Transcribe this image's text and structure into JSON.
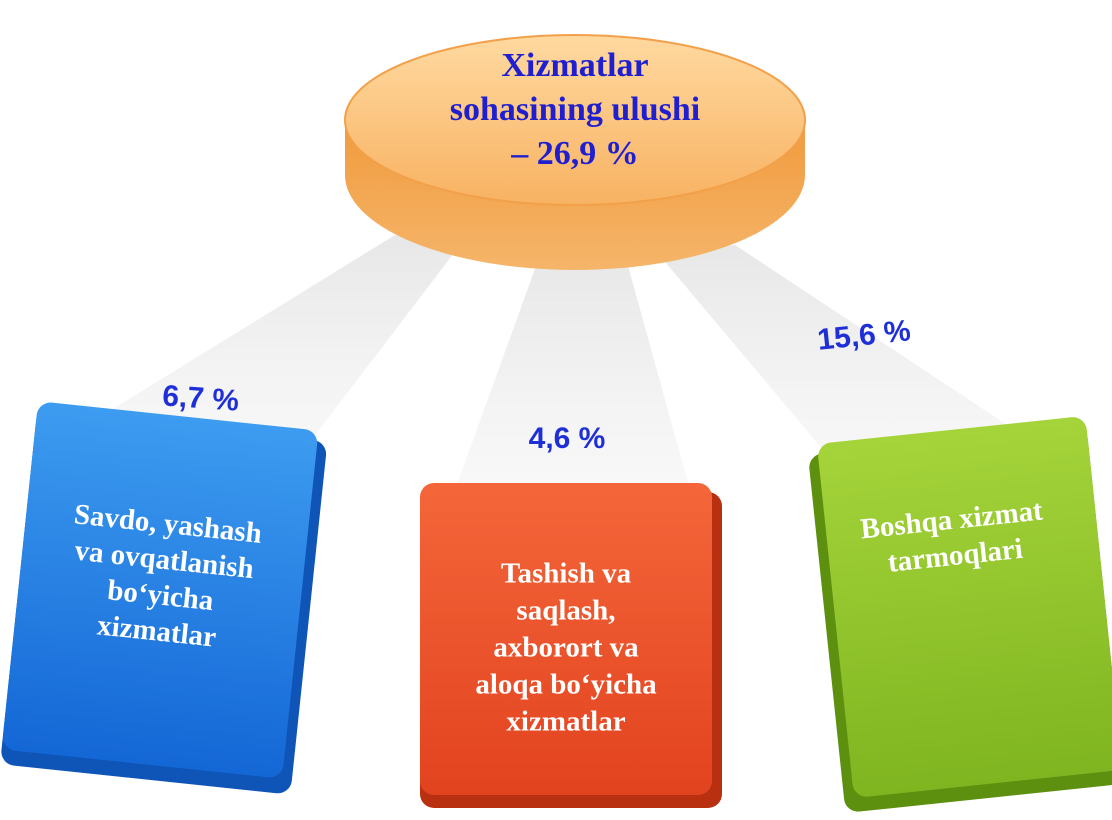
{
  "root": {
    "lines": [
      "Xizmatlar",
      "sohasining ulushi",
      "– 26,9 %"
    ]
  },
  "nodes": [
    {
      "share": "6,7 %",
      "lines": [
        "Savdo, yashash",
        "va ovqatlanish",
        "bo‘yicha",
        "xizmatlar"
      ]
    },
    {
      "share": "4,6 %",
      "lines": [
        "Tashish va",
        "saqlash,",
        "axborort va",
        "aloqa bo‘yicha",
        "xizmatlar"
      ]
    },
    {
      "share": "15,6 %",
      "lines": [
        "Boshqa xizmat",
        "tarmoqlari"
      ]
    }
  ]
}
